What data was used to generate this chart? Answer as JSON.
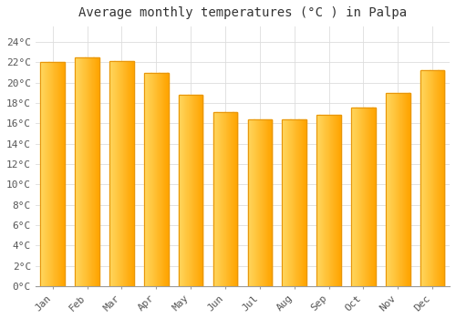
{
  "title": "Average monthly temperatures (°C ) in Palpa",
  "months": [
    "Jan",
    "Feb",
    "Mar",
    "Apr",
    "May",
    "Jun",
    "Jul",
    "Aug",
    "Sep",
    "Oct",
    "Nov",
    "Dec"
  ],
  "values": [
    22.0,
    22.5,
    22.1,
    20.9,
    18.8,
    17.1,
    16.4,
    16.4,
    16.8,
    17.5,
    19.0,
    21.2
  ],
  "bar_color_left": "#FFD860",
  "bar_color_right": "#FFA500",
  "bar_edge_color": "#E8960A",
  "background_color": "#FFFFFF",
  "grid_color": "#DDDDDD",
  "ytick_labels": [
    "0°C",
    "2°C",
    "4°C",
    "6°C",
    "8°C",
    "10°C",
    "12°C",
    "14°C",
    "16°C",
    "18°C",
    "20°C",
    "22°C",
    "24°C"
  ],
  "ytick_values": [
    0,
    2,
    4,
    6,
    8,
    10,
    12,
    14,
    16,
    18,
    20,
    22,
    24
  ],
  "ylim": [
    0,
    25.5
  ],
  "title_fontsize": 10,
  "tick_fontsize": 8,
  "font_family": "monospace"
}
